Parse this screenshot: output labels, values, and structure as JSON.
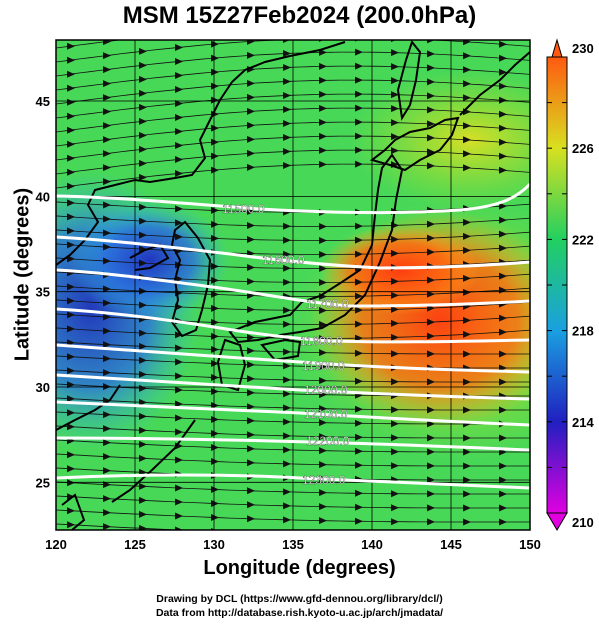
{
  "title": "MSM 15Z27Feb2024 (200.0hPa)",
  "x_axis": {
    "label": "Longitude (degrees)",
    "min": 120,
    "max": 150,
    "ticks": [
      "120",
      "125",
      "130",
      "135",
      "140",
      "145",
      "150"
    ]
  },
  "y_axis": {
    "label": "Latitude  (degrees)",
    "min": 22.5,
    "max": 48.2,
    "ticks": [
      "25",
      "30",
      "35",
      "40",
      "45"
    ]
  },
  "colorbar": {
    "min": 210,
    "max": 230,
    "labels": [
      "210",
      "214",
      "218",
      "222",
      "226",
      "230"
    ],
    "colors": [
      "#e000e0",
      "#2020c0",
      "#1aa0e0",
      "#22d060",
      "#d8e020",
      "#ff5a10"
    ]
  },
  "contour_labels": [
    "11500.0",
    "11600.0",
    "11700.0",
    "11800.0",
    "11900.0",
    "12000.0",
    "12100.0",
    "12200.0",
    "12300.0"
  ],
  "footer": {
    "line1": "Drawing by DCL (https://www.gfd-dennou.org/library/dcl/)",
    "line2": "Data from http://database.rish.kyoto-u.ac.jp/arch/jmadata/"
  }
}
